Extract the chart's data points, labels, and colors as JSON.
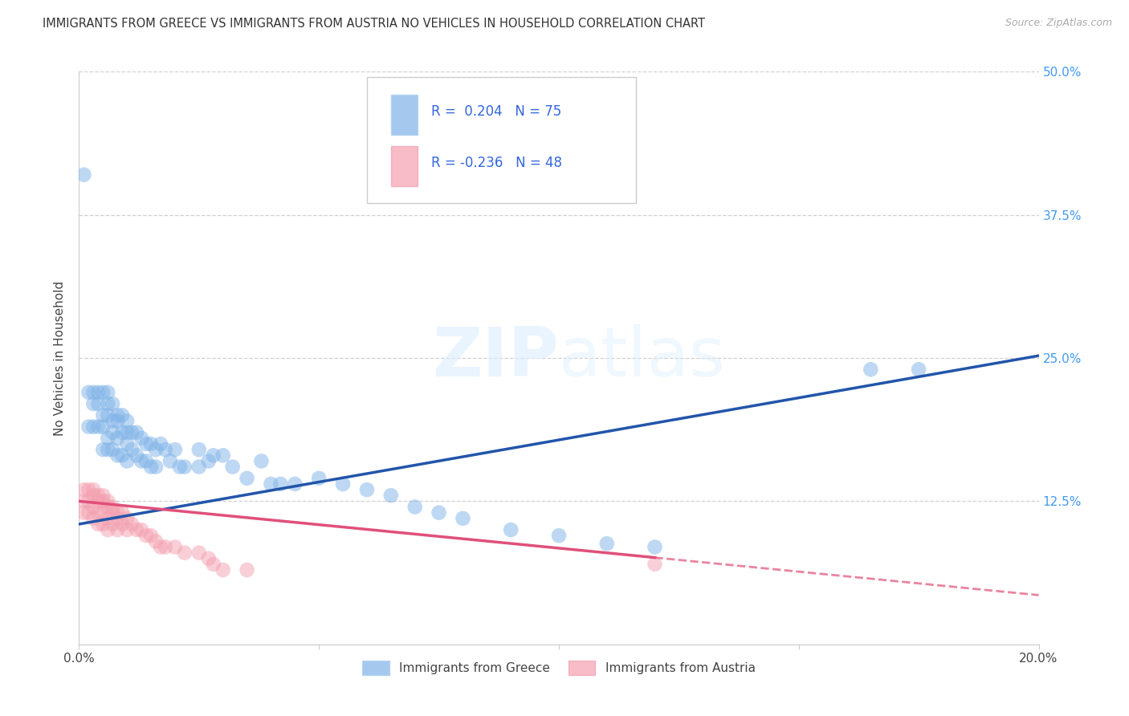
{
  "title": "IMMIGRANTS FROM GREECE VS IMMIGRANTS FROM AUSTRIA NO VEHICLES IN HOUSEHOLD CORRELATION CHART",
  "source": "Source: ZipAtlas.com",
  "ylabel": "No Vehicles in Household",
  "xlim": [
    0.0,
    0.2
  ],
  "ylim": [
    0.0,
    0.5
  ],
  "legend_label1": "Immigrants from Greece",
  "legend_label2": "Immigrants from Austria",
  "legend_r1": "R =  0.204",
  "legend_n1": "N = 75",
  "legend_r2": "R = -0.236",
  "legend_n2": "N = 48",
  "color_greece": "#7fb3e8",
  "color_austria": "#f4a0b0",
  "line_color_greece": "#2255aa",
  "line_color_austria": "#e0507a",
  "watermark": "ZIPatlas",
  "greece_x": [
    0.001,
    0.002,
    0.002,
    0.003,
    0.003,
    0.003,
    0.004,
    0.004,
    0.004,
    0.005,
    0.005,
    0.005,
    0.005,
    0.006,
    0.006,
    0.006,
    0.006,
    0.006,
    0.007,
    0.007,
    0.007,
    0.007,
    0.008,
    0.008,
    0.008,
    0.008,
    0.009,
    0.009,
    0.009,
    0.01,
    0.01,
    0.01,
    0.01,
    0.011,
    0.011,
    0.012,
    0.012,
    0.013,
    0.013,
    0.014,
    0.014,
    0.015,
    0.015,
    0.016,
    0.016,
    0.017,
    0.018,
    0.019,
    0.02,
    0.021,
    0.022,
    0.025,
    0.025,
    0.027,
    0.028,
    0.03,
    0.032,
    0.035,
    0.038,
    0.04,
    0.042,
    0.045,
    0.05,
    0.055,
    0.06,
    0.065,
    0.07,
    0.075,
    0.08,
    0.09,
    0.1,
    0.11,
    0.12,
    0.165,
    0.175
  ],
  "greece_y": [
    0.41,
    0.22,
    0.19,
    0.22,
    0.21,
    0.19,
    0.22,
    0.21,
    0.19,
    0.22,
    0.2,
    0.19,
    0.17,
    0.22,
    0.21,
    0.2,
    0.18,
    0.17,
    0.21,
    0.195,
    0.185,
    0.17,
    0.2,
    0.195,
    0.18,
    0.165,
    0.2,
    0.185,
    0.165,
    0.195,
    0.185,
    0.175,
    0.16,
    0.185,
    0.17,
    0.185,
    0.165,
    0.18,
    0.16,
    0.175,
    0.16,
    0.175,
    0.155,
    0.17,
    0.155,
    0.175,
    0.17,
    0.16,
    0.17,
    0.155,
    0.155,
    0.17,
    0.155,
    0.16,
    0.165,
    0.165,
    0.155,
    0.145,
    0.16,
    0.14,
    0.14,
    0.14,
    0.145,
    0.14,
    0.135,
    0.13,
    0.12,
    0.115,
    0.11,
    0.1,
    0.095,
    0.088,
    0.085,
    0.24,
    0.24
  ],
  "austria_x": [
    0.001,
    0.001,
    0.001,
    0.002,
    0.002,
    0.002,
    0.003,
    0.003,
    0.003,
    0.003,
    0.004,
    0.004,
    0.004,
    0.004,
    0.005,
    0.005,
    0.005,
    0.005,
    0.006,
    0.006,
    0.006,
    0.006,
    0.007,
    0.007,
    0.007,
    0.008,
    0.008,
    0.008,
    0.009,
    0.009,
    0.01,
    0.01,
    0.011,
    0.012,
    0.013,
    0.014,
    0.015,
    0.016,
    0.017,
    0.018,
    0.02,
    0.022,
    0.025,
    0.027,
    0.028,
    0.03,
    0.035,
    0.12
  ],
  "austria_y": [
    0.135,
    0.125,
    0.115,
    0.135,
    0.125,
    0.115,
    0.135,
    0.13,
    0.12,
    0.11,
    0.13,
    0.125,
    0.115,
    0.105,
    0.13,
    0.125,
    0.115,
    0.105,
    0.125,
    0.12,
    0.11,
    0.1,
    0.12,
    0.115,
    0.105,
    0.115,
    0.11,
    0.1,
    0.115,
    0.105,
    0.11,
    0.1,
    0.105,
    0.1,
    0.1,
    0.095,
    0.095,
    0.09,
    0.085,
    0.085,
    0.085,
    0.08,
    0.08,
    0.075,
    0.07,
    0.065,
    0.065,
    0.07
  ]
}
